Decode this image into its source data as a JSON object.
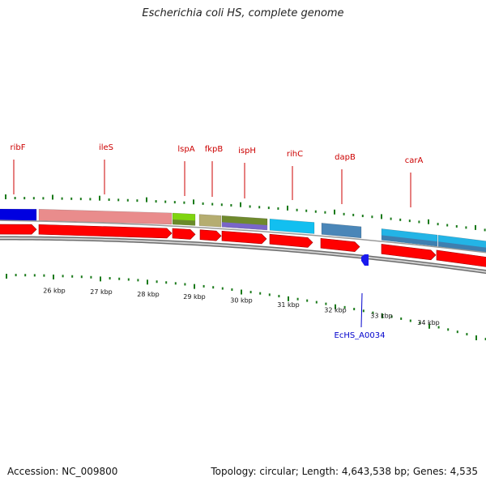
{
  "title": "Escherichia coli HS, complete genome",
  "footer": {
    "accession": "Accession: NC_009800",
    "topology": "Topology: circular; Length: 4,643,538 bp; Genes: 4,535"
  },
  "colors": {
    "gene_label": "#cc0000",
    "locus_label": "#0000cc",
    "tick": "#1a7a1a",
    "cds_arrow": "#ff0000",
    "backbone": "#8c8c8c"
  },
  "gene_labels": [
    "ribF",
    "ileS",
    "lspA",
    "fkpB",
    "ispH",
    "rihC",
    "dapB",
    "carA"
  ],
  "locus_label": "EcHS_A0034",
  "scale_labels": [
    "26 kbp",
    "27 kbp",
    "28 kbp",
    "29 kbp",
    "30 kbp",
    "31 kbp",
    "32 kbp",
    "33 kbp",
    "34 kbp"
  ]
}
